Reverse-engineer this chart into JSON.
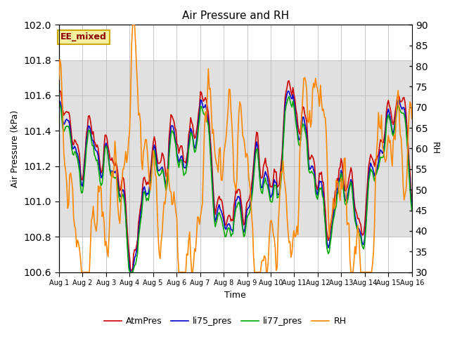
{
  "title": "Air Pressure and RH",
  "xlabel": "Time",
  "ylabel_left": "Air Pressure (kPa)",
  "ylabel_right": "RH",
  "ylim_left": [
    100.6,
    102.0
  ],
  "ylim_right": [
    30,
    90
  ],
  "shaded_region": [
    100.8,
    101.8
  ],
  "annotation_text": "EE_mixed",
  "colors": {
    "AtmPres": "#cc0000",
    "li75_pres": "#0000cc",
    "li77_pres": "#00aa00",
    "RH": "#ff8800"
  },
  "line_widths": {
    "AtmPres": 1.2,
    "li75_pres": 1.2,
    "li77_pres": 1.2,
    "RH": 1.2
  },
  "background_color": "#ffffff",
  "shaded_color": "#e0e0e0",
  "grid_color": "#bbbbbb",
  "xtick_labels": [
    "Aug 1",
    "Aug 2",
    "Aug 3",
    "Aug 4",
    "Aug 5",
    "Aug 6",
    "Aug 7",
    "Aug 8",
    "Aug 9",
    "Aug 10",
    "Aug 11",
    "Aug 12",
    "Aug 13",
    "Aug 14",
    "Aug 15",
    "Aug 16"
  ]
}
